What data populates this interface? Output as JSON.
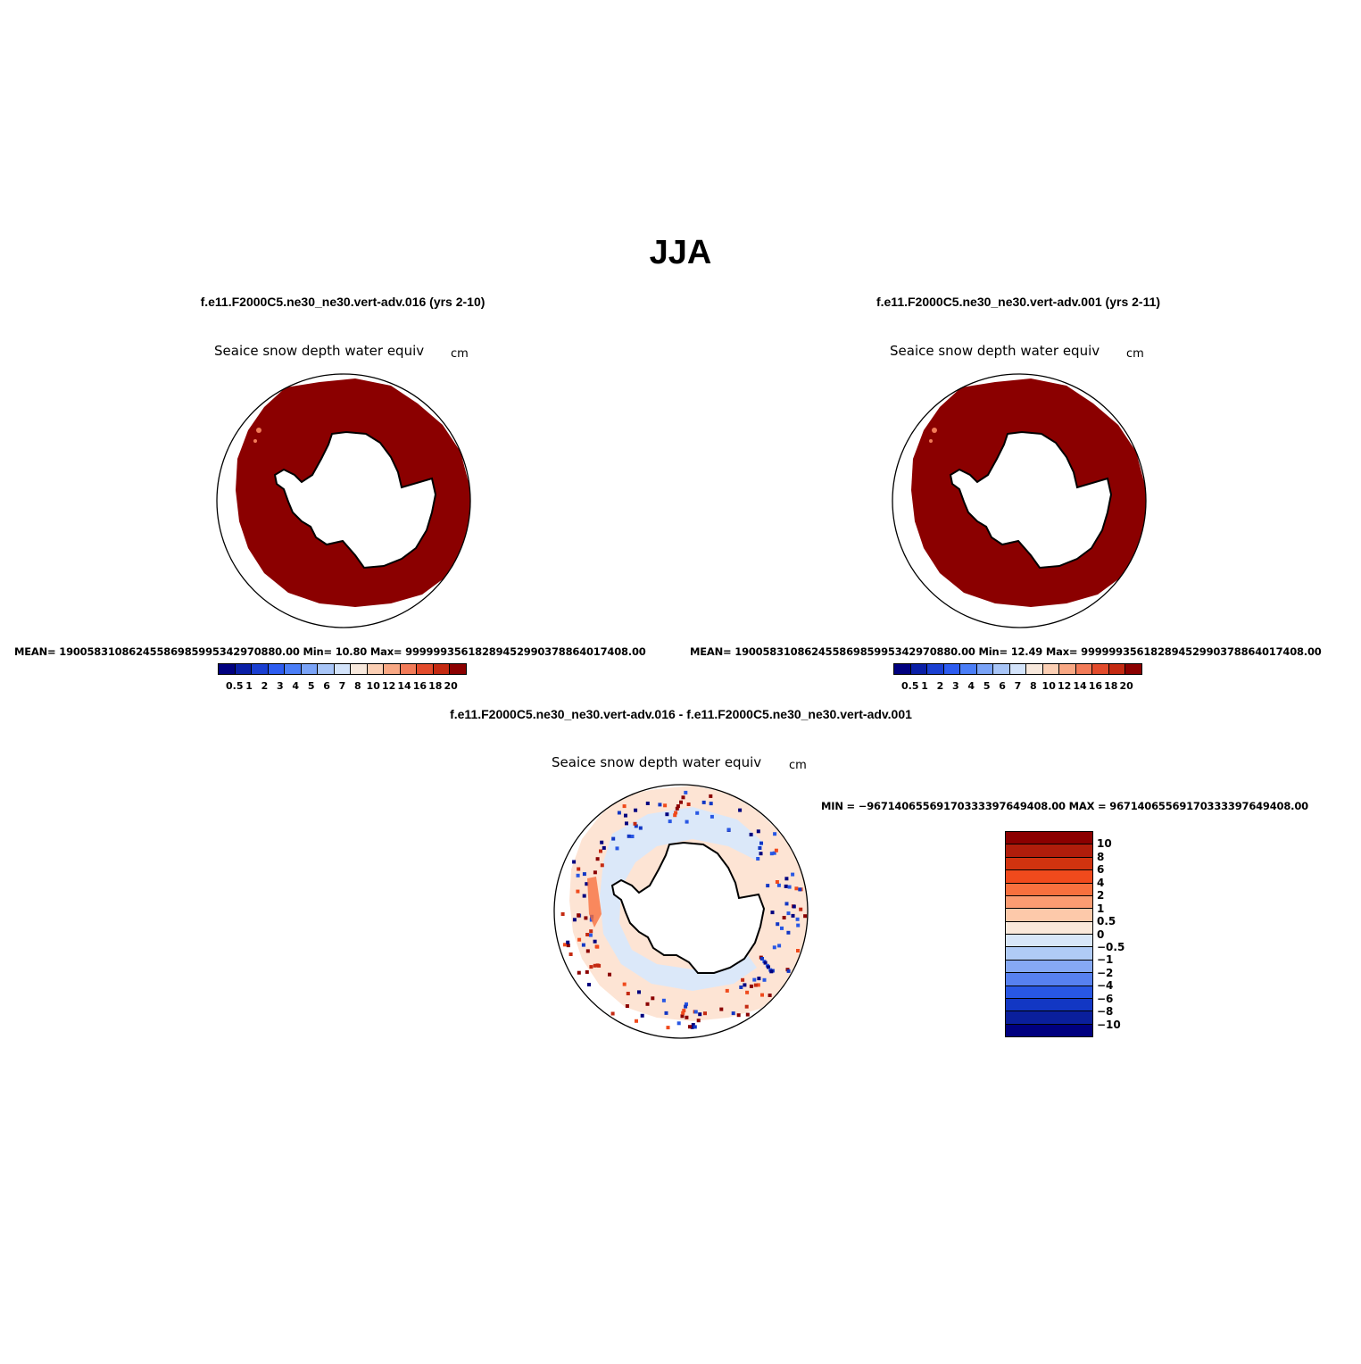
{
  "main_title": "JJA",
  "colors": {
    "seq": [
      "#00007f",
      "#0a1fa6",
      "#1a3fd1",
      "#2d5cf0",
      "#4b7ef7",
      "#7aa3f7",
      "#a8c5f7",
      "#d3e3fa",
      "#f7e8dc",
      "#fbcfb4",
      "#f8a884",
      "#f27b58",
      "#e24b2c",
      "#c42a12",
      "#8b0000"
    ],
    "div": [
      "#8b0000",
      "#b01d0b",
      "#d1330f",
      "#f04a1c",
      "#f8703e",
      "#fb9c72",
      "#fdc9aa",
      "#fae8da",
      "#d8e6f8",
      "#b0cbf6",
      "#86a9f4",
      "#5781f0",
      "#2857e4",
      "#1237c4",
      "#0a1f9c",
      "#00007f"
    ],
    "ice": "#8b0000",
    "land": "#ffffff",
    "outline": "#000000"
  },
  "panels": [
    {
      "title": "f.e11.F2000C5.ne30_ne30.vert-adv.016 (yrs 2-10)",
      "variable": "Seaice snow depth water equiv",
      "units": "cm",
      "stats": "MEAN= 19005831086245586985995342970880.00   Min=    10.80   Max= 99999935618289452990378864017408.00",
      "colorbar_labels": [
        "0.5",
        "1",
        "2",
        "3",
        "4",
        "5",
        "6",
        "7",
        "8",
        "10",
        "12",
        "14",
        "16",
        "18",
        "20"
      ]
    },
    {
      "title": "f.e11.F2000C5.ne30_ne30.vert-adv.001 (yrs 2-11)",
      "variable": "Seaice snow depth water equiv",
      "units": "cm",
      "stats": "MEAN= 19005831086245586985995342970880.00   Min=    12.49   Max= 99999935618289452990378864017408.00",
      "colorbar_labels": [
        "0.5",
        "1",
        "2",
        "3",
        "4",
        "5",
        "6",
        "7",
        "8",
        "10",
        "12",
        "14",
        "16",
        "18",
        "20"
      ]
    }
  ],
  "difference": {
    "title": "f.e11.F2000C5.ne30_ne30.vert-adv.016 - f.e11.F2000C5.ne30_ne30.vert-adv.001",
    "variable": "Seaice snow depth water equiv",
    "units": "cm",
    "stats": "MIN = −96714065569170333397649408.00  MAX = 96714065569170333397649408.00",
    "colorbar_labels": [
      "10",
      "8",
      "6",
      "4",
      "2",
      "1",
      "0.5",
      "0",
      "−0.5",
      "−1",
      "−2",
      "−4",
      "−6",
      "−8",
      "−10"
    ]
  }
}
